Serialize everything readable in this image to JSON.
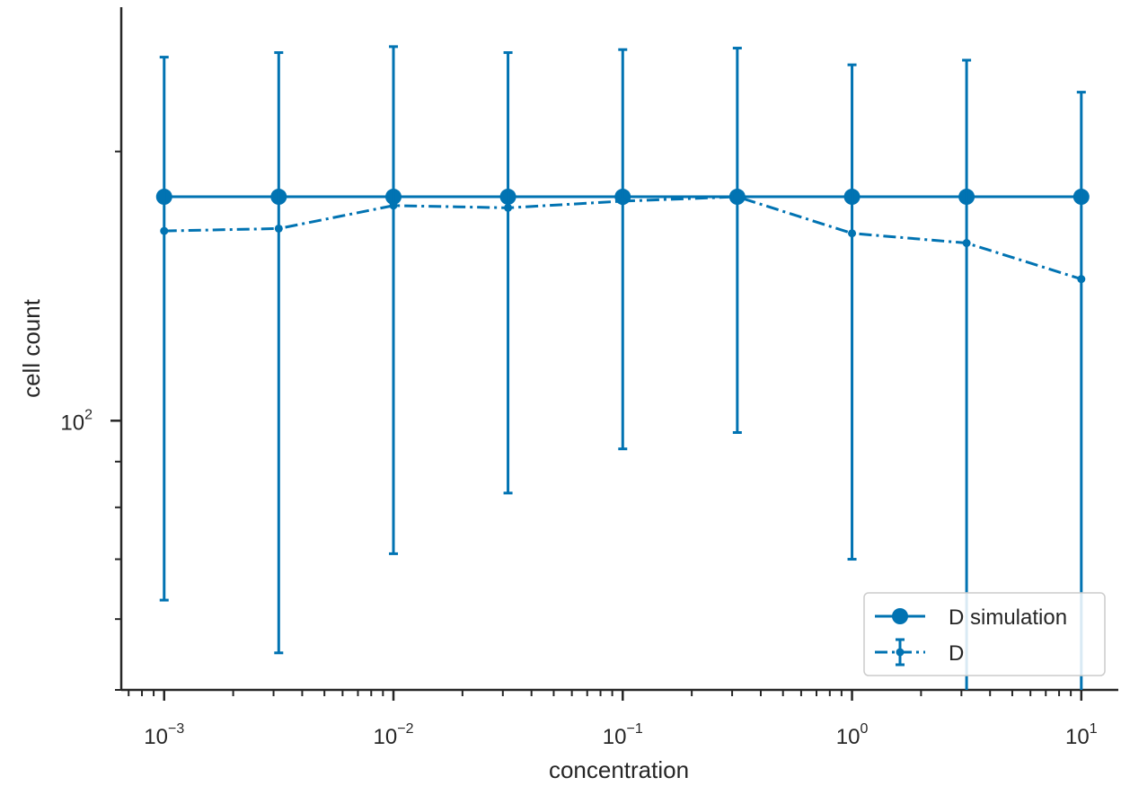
{
  "chart_data": {
    "type": "line",
    "xlabel": "concentration",
    "ylabel": "cell count",
    "x_scale": "log",
    "y_scale": "log",
    "xlim": [
      0.00065,
      14.5
    ],
    "ylim": [
      50,
      290
    ],
    "x_ticks": [
      {
        "value": 0.001,
        "base": "10",
        "exp": "−3"
      },
      {
        "value": 0.01,
        "base": "10",
        "exp": "−2"
      },
      {
        "value": 0.1,
        "base": "10",
        "exp": "−1"
      },
      {
        "value": 1,
        "base": "10",
        "exp": "0"
      },
      {
        "value": 10,
        "base": "10",
        "exp": "1"
      }
    ],
    "y_ticks": [
      {
        "value": 100,
        "base": "10",
        "exp": "2"
      }
    ],
    "grid": false,
    "legend_position": "bottom-right",
    "series": [
      {
        "name": "D simulation",
        "style": "solid",
        "marker": "circle-large",
        "x": [
          0.001,
          0.00316,
          0.01,
          0.0316,
          0.1,
          0.316,
          1,
          3.16,
          10
        ],
        "y": [
          178,
          178,
          178,
          178,
          178,
          178,
          178,
          178,
          178
        ]
      },
      {
        "name": "D",
        "style": "dashdot",
        "marker": "circle-small",
        "x": [
          0.001,
          0.00316,
          0.01,
          0.0316,
          0.1,
          0.316,
          1,
          3.16,
          10
        ],
        "y": [
          163,
          164,
          174,
          173,
          176,
          178,
          162,
          158,
          144
        ],
        "yerr_low": [
          63,
          55,
          71,
          83,
          93,
          97,
          70,
          0,
          0
        ],
        "yerr_high": [
          255,
          258,
          262,
          258,
          260,
          261,
          250,
          253,
          233
        ]
      }
    ],
    "colors": {
      "series": "#0173b2",
      "axis": "#262626"
    }
  }
}
